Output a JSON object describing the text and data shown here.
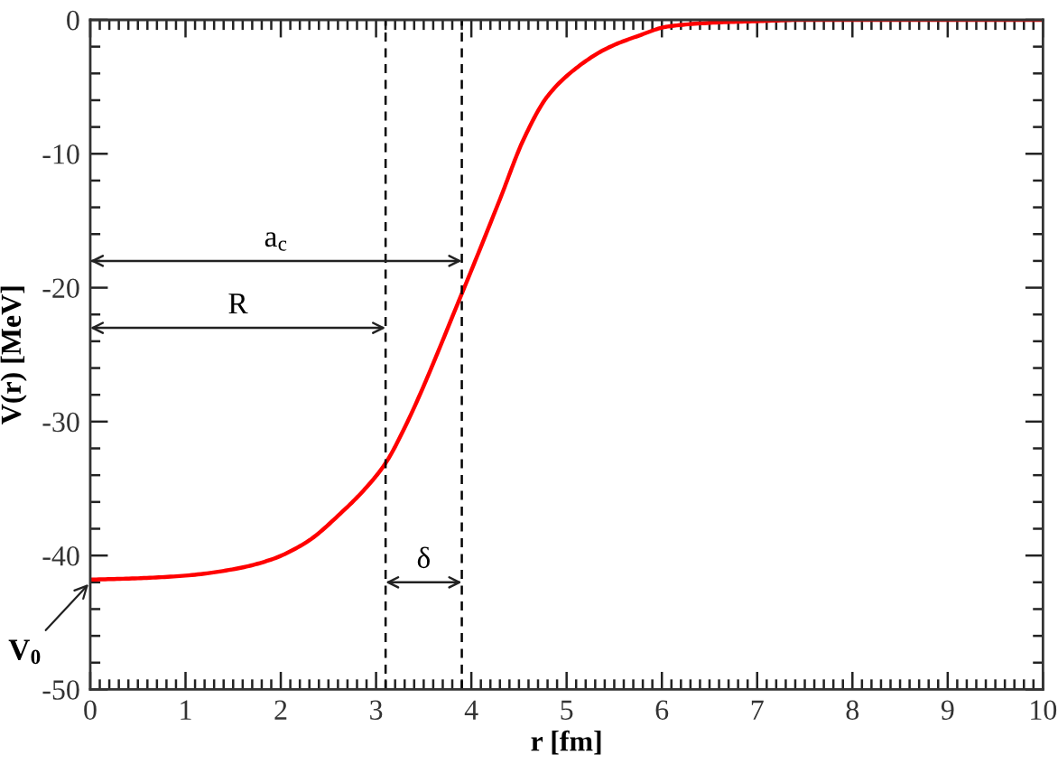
{
  "chart_data": {
    "type": "line",
    "xlabel": "r [fm]",
    "ylabel": "V(r) [MeV]",
    "x": [
      0,
      0.5,
      1.0,
      1.52,
      1.9,
      2.27,
      2.65,
      2.9,
      3.1,
      3.29,
      3.92,
      4.3,
      4.55,
      4.8,
      5.12,
      5.43,
      5.75,
      6.06,
      6.57,
      7.0,
      7.5,
      10
    ],
    "series": [
      {
        "color": "#ff0000",
        "values": [
          -41.8,
          -41.7,
          -41.5,
          -41.0,
          -40.3,
          -39.0,
          -36.7,
          -34.9,
          -33.1,
          -30.6,
          -20.1,
          -13.4,
          -8.9,
          -5.7,
          -3.5,
          -2.1,
          -1.2,
          -0.5,
          -0.2,
          -0.1,
          0,
          0
        ]
      }
    ],
    "line_style": "solid",
    "xlim": [
      0,
      10
    ],
    "ylim": [
      -50,
      0
    ],
    "xticks": [
      0,
      1,
      2,
      3,
      4,
      5,
      6,
      7,
      8,
      9,
      10,
      {
        "value": 0.1,
        "label": null
      },
      {
        "value": 0.2,
        "label": null
      },
      {
        "value": 0.3,
        "label": null
      },
      {
        "value": 0.4,
        "label": null
      },
      {
        "value": 0.5,
        "label": null
      },
      {
        "value": 0.6,
        "label": null
      },
      {
        "value": 0.7,
        "label": null
      },
      {
        "value": 0.8,
        "label": null
      },
      {
        "value": 0.9,
        "label": null
      },
      {
        "value": 1.1,
        "label": null
      },
      {
        "value": 1.2,
        "label": null
      },
      {
        "value": 1.3,
        "label": null
      },
      {
        "value": 1.4,
        "label": null
      },
      {
        "value": 1.5,
        "label": null
      },
      {
        "value": 1.6,
        "label": null
      },
      {
        "value": 1.7,
        "label": null
      },
      {
        "value": 1.8,
        "label": null
      },
      {
        "value": 1.9,
        "label": null
      },
      {
        "value": 2.1,
        "label": null
      },
      {
        "value": 2.2,
        "label": null
      },
      {
        "value": 2.3,
        "label": null
      },
      {
        "value": 2.4,
        "label": null
      },
      {
        "value": 2.5,
        "label": null
      },
      {
        "value": 2.6,
        "label": null
      },
      {
        "value": 2.7,
        "label": null
      },
      {
        "value": 2.8,
        "label": null
      },
      {
        "value": 2.9,
        "label": null
      },
      {
        "value": 3.1,
        "label": null
      },
      {
        "value": 3.2,
        "label": null
      },
      {
        "value": 3.3,
        "label": null
      },
      {
        "value": 3.4,
        "label": null
      },
      {
        "value": 3.5,
        "label": null
      },
      {
        "value": 3.6,
        "label": null
      },
      {
        "value": 3.7,
        "label": null
      },
      {
        "value": 3.8,
        "label": null
      },
      {
        "value": 3.9,
        "label": null
      },
      {
        "value": 4.1,
        "label": null
      },
      {
        "value": 4.2,
        "label": null
      },
      {
        "value": 4.3,
        "label": null
      },
      {
        "value": 4.4,
        "label": null
      },
      {
        "value": 4.5,
        "label": null
      },
      {
        "value": 4.6,
        "label": null
      },
      {
        "value": 4.7,
        "label": null
      },
      {
        "value": 4.8,
        "label": null
      },
      {
        "value": 4.9,
        "label": null
      },
      {
        "value": 5.1,
        "label": null
      },
      {
        "value": 5.2,
        "label": null
      },
      {
        "value": 5.3,
        "label": null
      },
      {
        "value": 5.4,
        "label": null
      },
      {
        "value": 5.5,
        "label": null
      },
      {
        "value": 5.6,
        "label": null
      },
      {
        "value": 5.7,
        "label": null
      },
      {
        "value": 5.8,
        "label": null
      },
      {
        "value": 5.9,
        "label": null
      },
      {
        "value": 6.1,
        "label": null
      },
      {
        "value": 6.2,
        "label": null
      },
      {
        "value": 6.3,
        "label": null
      },
      {
        "value": 6.4,
        "label": null
      },
      {
        "value": 6.5,
        "label": null
      },
      {
        "value": 6.6,
        "label": null
      },
      {
        "value": 6.7,
        "label": null
      },
      {
        "value": 6.8,
        "label": null
      },
      {
        "value": 6.9,
        "label": null
      },
      {
        "value": 7.1,
        "label": null
      },
      {
        "value": 7.2,
        "label": null
      },
      {
        "value": 7.3,
        "label": null
      },
      {
        "value": 7.4,
        "label": null
      },
      {
        "value": 7.5,
        "label": null
      },
      {
        "value": 7.6,
        "label": null
      },
      {
        "value": 7.7,
        "label": null
      },
      {
        "value": 7.8,
        "label": null
      },
      {
        "value": 7.9,
        "label": null
      },
      {
        "value": 8.1,
        "label": null
      },
      {
        "value": 8.2,
        "label": null
      },
      {
        "value": 8.3,
        "label": null
      },
      {
        "value": 8.4,
        "label": null
      },
      {
        "value": 8.5,
        "label": null
      },
      {
        "value": 8.6,
        "label": null
      },
      {
        "value": 8.7,
        "label": null
      },
      {
        "value": 8.8,
        "label": null
      },
      {
        "value": 8.9,
        "label": null
      },
      {
        "value": 9.1,
        "label": null
      },
      {
        "value": 9.2,
        "label": null
      },
      {
        "value": 9.3,
        "label": null
      },
      {
        "value": 9.4,
        "label": null
      },
      {
        "value": 9.5,
        "label": null
      },
      {
        "value": 9.6,
        "label": null
      },
      {
        "value": 9.7,
        "label": null
      },
      {
        "value": 9.8,
        "label": null
      },
      {
        "value": 9.9,
        "label": null
      }
    ],
    "yticks": [
      -50,
      -40,
      -30,
      -20,
      -10,
      0,
      {
        "value": -48,
        "label": null
      },
      {
        "value": -46,
        "label": null
      },
      {
        "value": -44,
        "label": null
      },
      {
        "value": -42,
        "label": null
      },
      {
        "value": -38,
        "label": null
      },
      {
        "value": -36,
        "label": null
      },
      {
        "value": -34,
        "label": null
      },
      {
        "value": -32,
        "label": null
      },
      {
        "value": -28,
        "label": null
      },
      {
        "value": -26,
        "label": null
      },
      {
        "value": -24,
        "label": null
      },
      {
        "value": -22,
        "label": null
      },
      {
        "value": -18,
        "label": null
      },
      {
        "value": -16,
        "label": null
      },
      {
        "value": -14,
        "label": null
      },
      {
        "value": -12,
        "label": null
      },
      {
        "value": -8,
        "label": null
      },
      {
        "value": -6,
        "label": null
      },
      {
        "value": -4,
        "label": null
      },
      {
        "value": -2,
        "label": null
      }
    ],
    "ref_lines": [
      {
        "axis": "x",
        "value": 3.1,
        "color": "#000000",
        "line_style": "dashed"
      },
      {
        "axis": "x",
        "value": 3.9,
        "color": "#000000",
        "line_style": "dashed"
      }
    ],
    "annotations": [
      "a$_{c}$",
      "R",
      "δ",
      {
        "text": "V$_{0}$",
        "x": 0,
        "y": -42
      }
    ],
    "grid": false,
    "legend": false
  }
}
